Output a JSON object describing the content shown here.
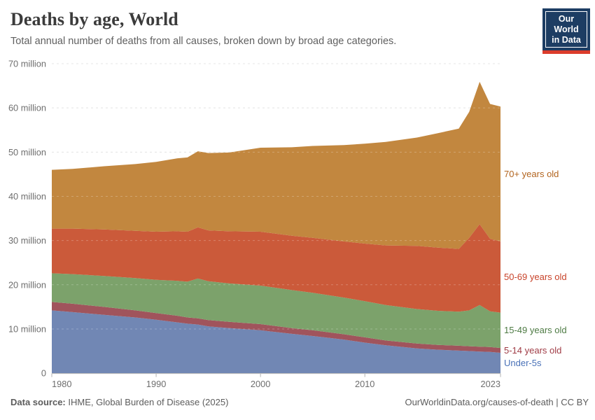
{
  "header": {
    "title": "Deaths by age, World",
    "subtitle": "Total annual number of deaths from all causes, broken down by broad age categories.",
    "logo": {
      "line1": "Our World",
      "line2": "in Data",
      "bg_color": "#1d3d63",
      "accent_color": "#dc3c2c"
    }
  },
  "footer": {
    "source_label": "Data source:",
    "source_value": " IHME, Global Burden of Disease (2025)",
    "credit": "OurWorldinData.org/causes-of-death | CC BY"
  },
  "chart_data": {
    "type": "area",
    "stacked": true,
    "title": "Deaths by age, World",
    "subtitle": "Total annual number of deaths from all causes, broken down by broad age categories.",
    "unit": "deaths per year (millions)",
    "xlim": [
      1980,
      2023
    ],
    "ylim": [
      0,
      70
    ],
    "grid": "dashed-horizontal",
    "legend_position": "right-inline",
    "x": [
      1980,
      1982,
      1985,
      1988,
      1990,
      1992,
      1993,
      1994,
      1995,
      1997,
      2000,
      2003,
      2005,
      2008,
      2010,
      2012,
      2015,
      2017,
      2019,
      2020,
      2021,
      2022,
      2023
    ],
    "series": [
      {
        "name": "under-5s",
        "label": "Under-5s",
        "fill": "#7187b4",
        "label_color": "#4a72b8",
        "values": [
          14.2,
          13.8,
          13.2,
          12.6,
          12.1,
          11.5,
          11.2,
          11.0,
          10.6,
          10.2,
          9.7,
          8.9,
          8.4,
          7.6,
          6.9,
          6.3,
          5.6,
          5.3,
          5.1,
          5.0,
          4.9,
          4.8,
          4.6
        ]
      },
      {
        "name": "5-14-years-old",
        "label": "5-14 years old",
        "fill": "#a0545c",
        "label_color": "#a03c46",
        "values": [
          1.9,
          1.9,
          1.8,
          1.6,
          1.5,
          1.5,
          1.4,
          1.4,
          1.4,
          1.4,
          1.4,
          1.3,
          1.3,
          1.2,
          1.2,
          1.1,
          1.1,
          1.1,
          1.1,
          1.1,
          1.1,
          1.1,
          1.1
        ]
      },
      {
        "name": "15-49-years-old",
        "label": "15-49 years old",
        "fill": "#7ca26b",
        "label_color": "#4e7b44",
        "values": [
          6.5,
          6.7,
          7.0,
          7.3,
          7.5,
          7.9,
          8.1,
          9.0,
          8.8,
          8.7,
          8.7,
          8.6,
          8.5,
          8.3,
          8.2,
          8.0,
          7.8,
          7.7,
          7.7,
          8.1,
          9.4,
          8.1,
          8.0
        ]
      },
      {
        "name": "50-69-years-old",
        "label": "50-69 years old",
        "fill": "#cb5a3a",
        "label_color": "#c8432a",
        "values": [
          10.1,
          10.3,
          10.5,
          10.7,
          10.9,
          11.2,
          11.3,
          11.6,
          11.5,
          11.8,
          12.2,
          12.3,
          12.4,
          12.7,
          13.0,
          13.5,
          14.3,
          14.3,
          14.2,
          16.4,
          18.3,
          16.4,
          16.1
        ]
      },
      {
        "name": "70-plus-years-old",
        "label": "70+ years old",
        "fill": "#c2873f",
        "label_color": "#b2641e",
        "values": [
          13.3,
          13.5,
          14.3,
          15.1,
          15.8,
          16.5,
          16.8,
          17.2,
          17.5,
          17.8,
          19.0,
          20.0,
          20.8,
          21.8,
          22.6,
          23.4,
          24.5,
          25.9,
          27.2,
          28.5,
          32.2,
          30.5,
          30.5
        ]
      }
    ],
    "y_ticks": [
      {
        "value": 0,
        "label": "0"
      },
      {
        "value": 10,
        "label": "10 million"
      },
      {
        "value": 20,
        "label": "20 million"
      },
      {
        "value": 30,
        "label": "30 million"
      },
      {
        "value": 40,
        "label": "40 million"
      },
      {
        "value": 50,
        "label": "50 million"
      },
      {
        "value": 60,
        "label": "60 million"
      },
      {
        "value": 70,
        "label": "70 million"
      }
    ],
    "x_ticks": [
      1980,
      1990,
      2000,
      2010,
      2023
    ]
  }
}
